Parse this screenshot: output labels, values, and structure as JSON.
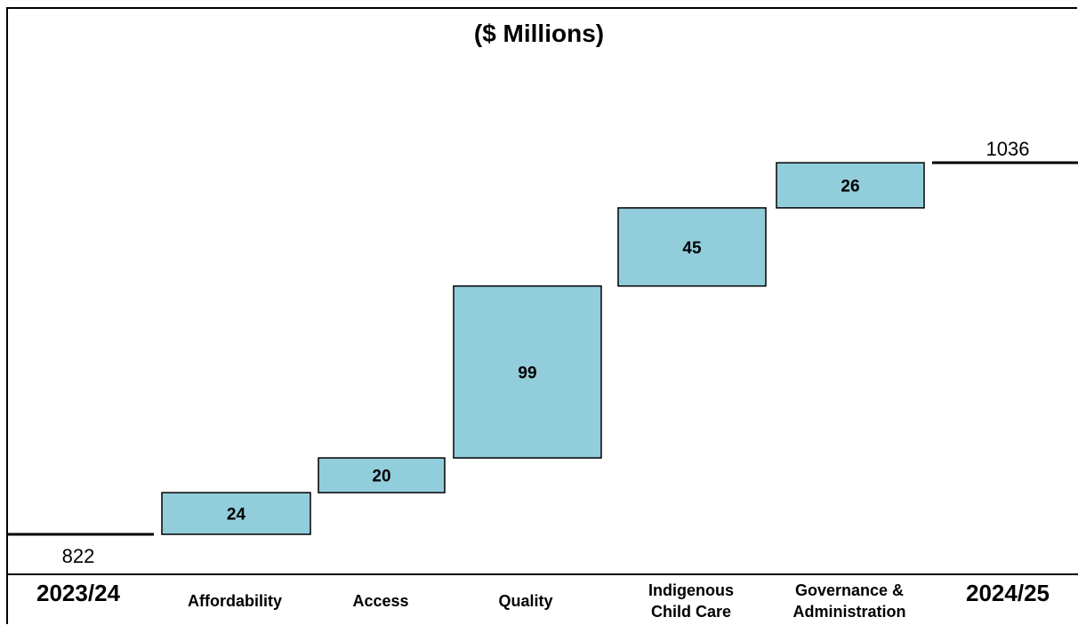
{
  "chart_data": {
    "type": "bar",
    "subtype": "waterfall",
    "title": "($ Millions)",
    "start": {
      "label": "2023/24",
      "value": 822
    },
    "end": {
      "label": "2024/25",
      "value": 1036
    },
    "categories": [
      "Affordability",
      "Access",
      "Quality",
      "Indigenous Child Care",
      "Governance & Administration"
    ],
    "category_lines": [
      [
        "Affordability"
      ],
      [
        "Access"
      ],
      [
        "Quality"
      ],
      [
        "Indigenous",
        "Child Care"
      ],
      [
        "Governance &",
        "Administration"
      ]
    ],
    "values": [
      24,
      20,
      99,
      45,
      26
    ],
    "bar_color": "#92CDDC",
    "bar_border_color": "#000000",
    "grid": false,
    "legend": "none"
  }
}
